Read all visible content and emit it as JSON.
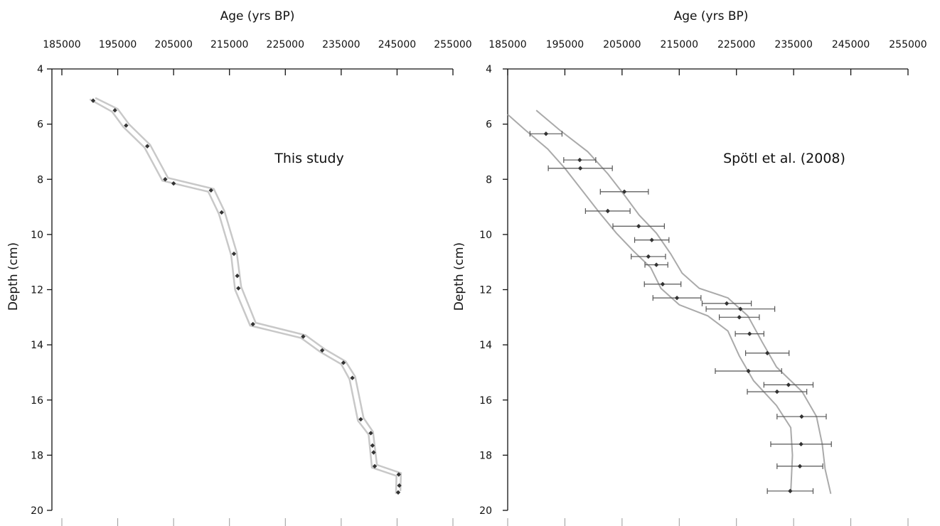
{
  "chart_data": [
    {
      "type": "line",
      "panel_label": "This study",
      "xlabel": "Age (yrs BP)",
      "ylabel": "Depth (cm)",
      "x_axis_position": "top",
      "y_inverted": true,
      "xlim": [
        185000,
        255000
      ],
      "ylim": [
        4,
        20
      ],
      "x_ticks": [
        185000,
        195000,
        205000,
        215000,
        225000,
        235000,
        245000,
        255000
      ],
      "x_tick_labels": [
        "185000",
        "195000",
        "205000",
        "215000",
        "225000",
        "235000",
        "245000",
        "255000"
      ],
      "y_ticks": [
        4,
        6,
        8,
        10,
        12,
        14,
        16,
        18,
        20
      ],
      "y_tick_labels": [
        "4",
        "6",
        "8",
        "10",
        "12",
        "14",
        "16",
        "18",
        "20"
      ],
      "grid": false,
      "colors": {
        "points": "#333333",
        "envelope": "#c8c8c8"
      },
      "series": [
        {
          "points": [
            {
              "age": 190600,
              "depth": 5.15
            },
            {
              "age": 194500,
              "depth": 5.5
            },
            {
              "age": 196500,
              "depth": 6.05
            },
            {
              "age": 200300,
              "depth": 6.8
            },
            {
              "age": 203500,
              "depth": 8.0
            },
            {
              "age": 205000,
              "depth": 8.15
            },
            {
              "age": 211700,
              "depth": 8.4
            },
            {
              "age": 213600,
              "depth": 9.2
            },
            {
              "age": 215800,
              "depth": 10.7
            },
            {
              "age": 216400,
              "depth": 11.5
            },
            {
              "age": 216600,
              "depth": 11.95
            },
            {
              "age": 219200,
              "depth": 13.25
            },
            {
              "age": 228200,
              "depth": 13.7
            },
            {
              "age": 231600,
              "depth": 14.2
            },
            {
              "age": 235400,
              "depth": 14.65
            },
            {
              "age": 237000,
              "depth": 15.2
            },
            {
              "age": 238500,
              "depth": 16.7
            },
            {
              "age": 240300,
              "depth": 17.2
            },
            {
              "age": 240600,
              "depth": 17.65
            },
            {
              "age": 240800,
              "depth": 17.9
            },
            {
              "age": 241000,
              "depth": 18.4
            },
            {
              "age": 245300,
              "depth": 18.7
            },
            {
              "age": 245400,
              "depth": 19.1
            },
            {
              "age": 245200,
              "depth": 19.35
            }
          ],
          "envelope_lower": [
            {
              "age": 190000,
              "depth": 5.1
            },
            {
              "age": 194000,
              "depth": 5.55
            },
            {
              "age": 196000,
              "depth": 6.1
            },
            {
              "age": 199800,
              "depth": 6.85
            },
            {
              "age": 203000,
              "depth": 8.05
            },
            {
              "age": 211200,
              "depth": 8.45
            },
            {
              "age": 213100,
              "depth": 9.25
            },
            {
              "age": 215300,
              "depth": 10.75
            },
            {
              "age": 216000,
              "depth": 12.0
            },
            {
              "age": 218700,
              "depth": 13.3
            },
            {
              "age": 227800,
              "depth": 13.75
            },
            {
              "age": 231200,
              "depth": 14.25
            },
            {
              "age": 235000,
              "depth": 14.7
            },
            {
              "age": 236500,
              "depth": 15.25
            },
            {
              "age": 238000,
              "depth": 16.75
            },
            {
              "age": 239900,
              "depth": 17.25
            },
            {
              "age": 240500,
              "depth": 18.45
            },
            {
              "age": 244900,
              "depth": 18.75
            },
            {
              "age": 244800,
              "depth": 19.4
            }
          ],
          "envelope_upper": [
            {
              "age": 191000,
              "depth": 5.05
            },
            {
              "age": 195000,
              "depth": 5.45
            },
            {
              "age": 197000,
              "depth": 6.0
            },
            {
              "age": 200800,
              "depth": 6.75
            },
            {
              "age": 204000,
              "depth": 7.95
            },
            {
              "age": 212200,
              "depth": 8.35
            },
            {
              "age": 214100,
              "depth": 9.15
            },
            {
              "age": 216300,
              "depth": 10.65
            },
            {
              "age": 217100,
              "depth": 11.9
            },
            {
              "age": 219700,
              "depth": 13.2
            },
            {
              "age": 228600,
              "depth": 13.65
            },
            {
              "age": 232000,
              "depth": 14.15
            },
            {
              "age": 235800,
              "depth": 14.6
            },
            {
              "age": 237500,
              "depth": 15.15
            },
            {
              "age": 239000,
              "depth": 16.65
            },
            {
              "age": 240700,
              "depth": 17.15
            },
            {
              "age": 241400,
              "depth": 18.35
            },
            {
              "age": 245700,
              "depth": 18.65
            },
            {
              "age": 245600,
              "depth": 19.3
            }
          ]
        }
      ]
    },
    {
      "type": "scatter",
      "panel_label": "Spötl et al. (2008)",
      "xlabel": "Age (yrs BP)",
      "ylabel": "Depth (cm)",
      "x_axis_position": "top",
      "y_inverted": true,
      "xlim": [
        185000,
        255000
      ],
      "ylim": [
        4,
        20
      ],
      "x_ticks": [
        185000,
        195000,
        205000,
        215000,
        225000,
        235000,
        245000,
        255000
      ],
      "x_tick_labels": [
        "185000",
        "195000",
        "205000",
        "215000",
        "225000",
        "235000",
        "245000",
        "255000"
      ],
      "y_ticks": [
        4,
        6,
        8,
        10,
        12,
        14,
        16,
        18,
        20
      ],
      "y_tick_labels": [
        "4",
        "6",
        "8",
        "10",
        "12",
        "14",
        "16",
        "18",
        "20"
      ],
      "grid": false,
      "colors": {
        "points": "#333333",
        "error_bars": "#555555",
        "envelope": "#aaaaaa"
      },
      "series": [
        {
          "points": [
            {
              "age": 191700,
              "depth": 6.35,
              "err": 2800
            },
            {
              "age": 197600,
              "depth": 7.3,
              "err": 2800
            },
            {
              "age": 197700,
              "depth": 7.6,
              "err": 5600
            },
            {
              "age": 205400,
              "depth": 8.45,
              "err": 4200
            },
            {
              "age": 202500,
              "depth": 9.15,
              "err": 3900
            },
            {
              "age": 207900,
              "depth": 9.7,
              "err": 4500
            },
            {
              "age": 210200,
              "depth": 10.2,
              "err": 3000
            },
            {
              "age": 209600,
              "depth": 10.8,
              "err": 3000
            },
            {
              "age": 211000,
              "depth": 11.1,
              "err": 2000
            },
            {
              "age": 212100,
              "depth": 11.8,
              "err": 3200
            },
            {
              "age": 214600,
              "depth": 12.3,
              "err": 4200
            },
            {
              "age": 223300,
              "depth": 12.5,
              "err": 4300
            },
            {
              "age": 225700,
              "depth": 12.7,
              "err": 6000
            },
            {
              "age": 225500,
              "depth": 13.0,
              "err": 3500
            },
            {
              "age": 227300,
              "depth": 13.6,
              "err": 2500
            },
            {
              "age": 230400,
              "depth": 14.3,
              "err": 3800
            },
            {
              "age": 227100,
              "depth": 14.95,
              "err": 5800
            },
            {
              "age": 234100,
              "depth": 15.45,
              "err": 4300
            },
            {
              "age": 232100,
              "depth": 15.7,
              "err": 5200
            },
            {
              "age": 236400,
              "depth": 16.6,
              "err": 4300
            },
            {
              "age": 236300,
              "depth": 17.6,
              "err": 5300
            },
            {
              "age": 236100,
              "depth": 18.4,
              "err": 4000
            },
            {
              "age": 234400,
              "depth": 19.3,
              "err": 4000
            }
          ],
          "envelope_left": [
            {
              "age": 185000,
              "depth": 5.65
            },
            {
              "age": 188000,
              "depth": 6.2
            },
            {
              "age": 192000,
              "depth": 6.9
            },
            {
              "age": 195000,
              "depth": 7.6
            },
            {
              "age": 198000,
              "depth": 8.4
            },
            {
              "age": 201000,
              "depth": 9.2
            },
            {
              "age": 204000,
              "depth": 9.95
            },
            {
              "age": 207000,
              "depth": 10.6
            },
            {
              "age": 210000,
              "depth": 11.2
            },
            {
              "age": 211800,
              "depth": 11.95
            },
            {
              "age": 215000,
              "depth": 12.55
            },
            {
              "age": 220000,
              "depth": 12.95
            },
            {
              "age": 223500,
              "depth": 13.5
            },
            {
              "age": 225500,
              "depth": 14.4
            },
            {
              "age": 228000,
              "depth": 15.3
            },
            {
              "age": 232000,
              "depth": 16.2
            },
            {
              "age": 234500,
              "depth": 17.0
            },
            {
              "age": 234800,
              "depth": 18.0
            },
            {
              "age": 234500,
              "depth": 19.35
            }
          ],
          "envelope_right": [
            {
              "age": 190000,
              "depth": 5.5
            },
            {
              "age": 194000,
              "depth": 6.2
            },
            {
              "age": 199000,
              "depth": 7.0
            },
            {
              "age": 202500,
              "depth": 7.8
            },
            {
              "age": 205500,
              "depth": 8.6
            },
            {
              "age": 208000,
              "depth": 9.3
            },
            {
              "age": 211000,
              "depth": 9.95
            },
            {
              "age": 213500,
              "depth": 10.7
            },
            {
              "age": 215500,
              "depth": 11.4
            },
            {
              "age": 218500,
              "depth": 11.95
            },
            {
              "age": 223500,
              "depth": 12.3
            },
            {
              "age": 227000,
              "depth": 12.95
            },
            {
              "age": 229500,
              "depth": 13.9
            },
            {
              "age": 232000,
              "depth": 14.8
            },
            {
              "age": 236500,
              "depth": 15.7
            },
            {
              "age": 239000,
              "depth": 16.6
            },
            {
              "age": 240000,
              "depth": 17.6
            },
            {
              "age": 240500,
              "depth": 18.5
            },
            {
              "age": 241500,
              "depth": 19.4
            }
          ]
        }
      ]
    }
  ]
}
